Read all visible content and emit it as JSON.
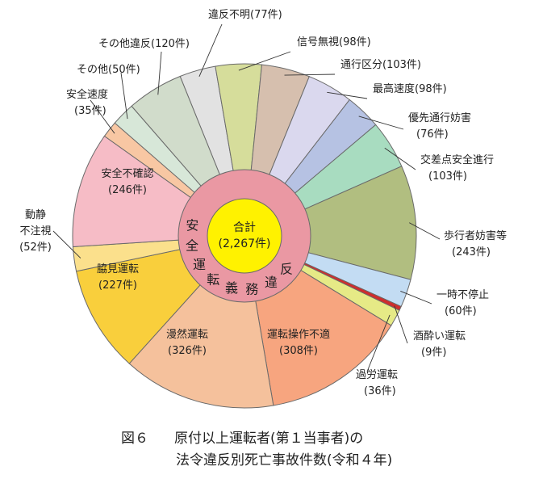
{
  "chart_data": {
    "type": "pie",
    "figure_label": "図６",
    "title_line1": "原付以上運転者(第１当事者)の",
    "title_line2": "法令違反別死亡事故件数(令和４年)",
    "total_label": "合計",
    "total_value": "(2,267件)",
    "inner_ring_label": "安全運転義務違反",
    "slices": [
      {
        "name": "違反不明",
        "value": 77,
        "count_label": "(77件)",
        "color": "#e2e2e2",
        "group": "other"
      },
      {
        "name": "信号無視",
        "value": 98,
        "count_label": "(98件)",
        "color": "#d6dd9b",
        "group": "other"
      },
      {
        "name": "通行区分",
        "value": 103,
        "count_label": "(103件)",
        "color": "#d6bfae",
        "group": "other"
      },
      {
        "name": "最高速度",
        "value": 98,
        "count_label": "(98件)",
        "color": "#dad8ee",
        "group": "other"
      },
      {
        "name": "優先通行妨害",
        "value": 76,
        "count_label": "(76件)",
        "color": "#b6c2e3",
        "group": "other"
      },
      {
        "name": "交差点安全進行",
        "value": 103,
        "count_label": "(103件)",
        "color": "#a8dcc0",
        "group": "other"
      },
      {
        "name": "歩行者妨害等",
        "value": 243,
        "count_label": "(243件)",
        "color": "#b1be80",
        "group": "other"
      },
      {
        "name": "一時不停止",
        "value": 60,
        "count_label": "(60件)",
        "color": "#c3dcf3",
        "group": "other"
      },
      {
        "name": "酒酔い運転",
        "value": 9,
        "count_label": "(9件)",
        "color": "#cf2d2d",
        "group": "other"
      },
      {
        "name": "過労運転",
        "value": 36,
        "count_label": "(36件)",
        "color": "#e6ea86",
        "group": "other"
      },
      {
        "name": "運転操作不適",
        "value": 308,
        "count_label": "(308件)",
        "color": "#f7a57f",
        "group": "safe"
      },
      {
        "name": "漫然運転",
        "value": 326,
        "count_label": "(326件)",
        "color": "#f5c19c",
        "group": "safe"
      },
      {
        "name": "脇見運転",
        "value": 227,
        "count_label": "(227件)",
        "color": "#f9cf3c",
        "group": "safe"
      },
      {
        "name": "動静不注視",
        "value": 52,
        "count_label": "(52件)",
        "color": "#fbe08c",
        "group": "safe"
      },
      {
        "name": "安全不確認",
        "value": 246,
        "count_label": "(246件)",
        "color": "#f6bcc6",
        "group": "safe"
      },
      {
        "name": "安全速度",
        "value": 35,
        "count_label": "(35件)",
        "color": "#f8c7a3",
        "group": "safe"
      },
      {
        "name": "その他",
        "value": 50,
        "count_label": "(50件)",
        "color": "#d7e7d8",
        "group": "safe"
      },
      {
        "name": "その他違反",
        "value": 120,
        "count_label": "(120件)",
        "color": "#d1dccb",
        "group": "other"
      }
    ]
  }
}
